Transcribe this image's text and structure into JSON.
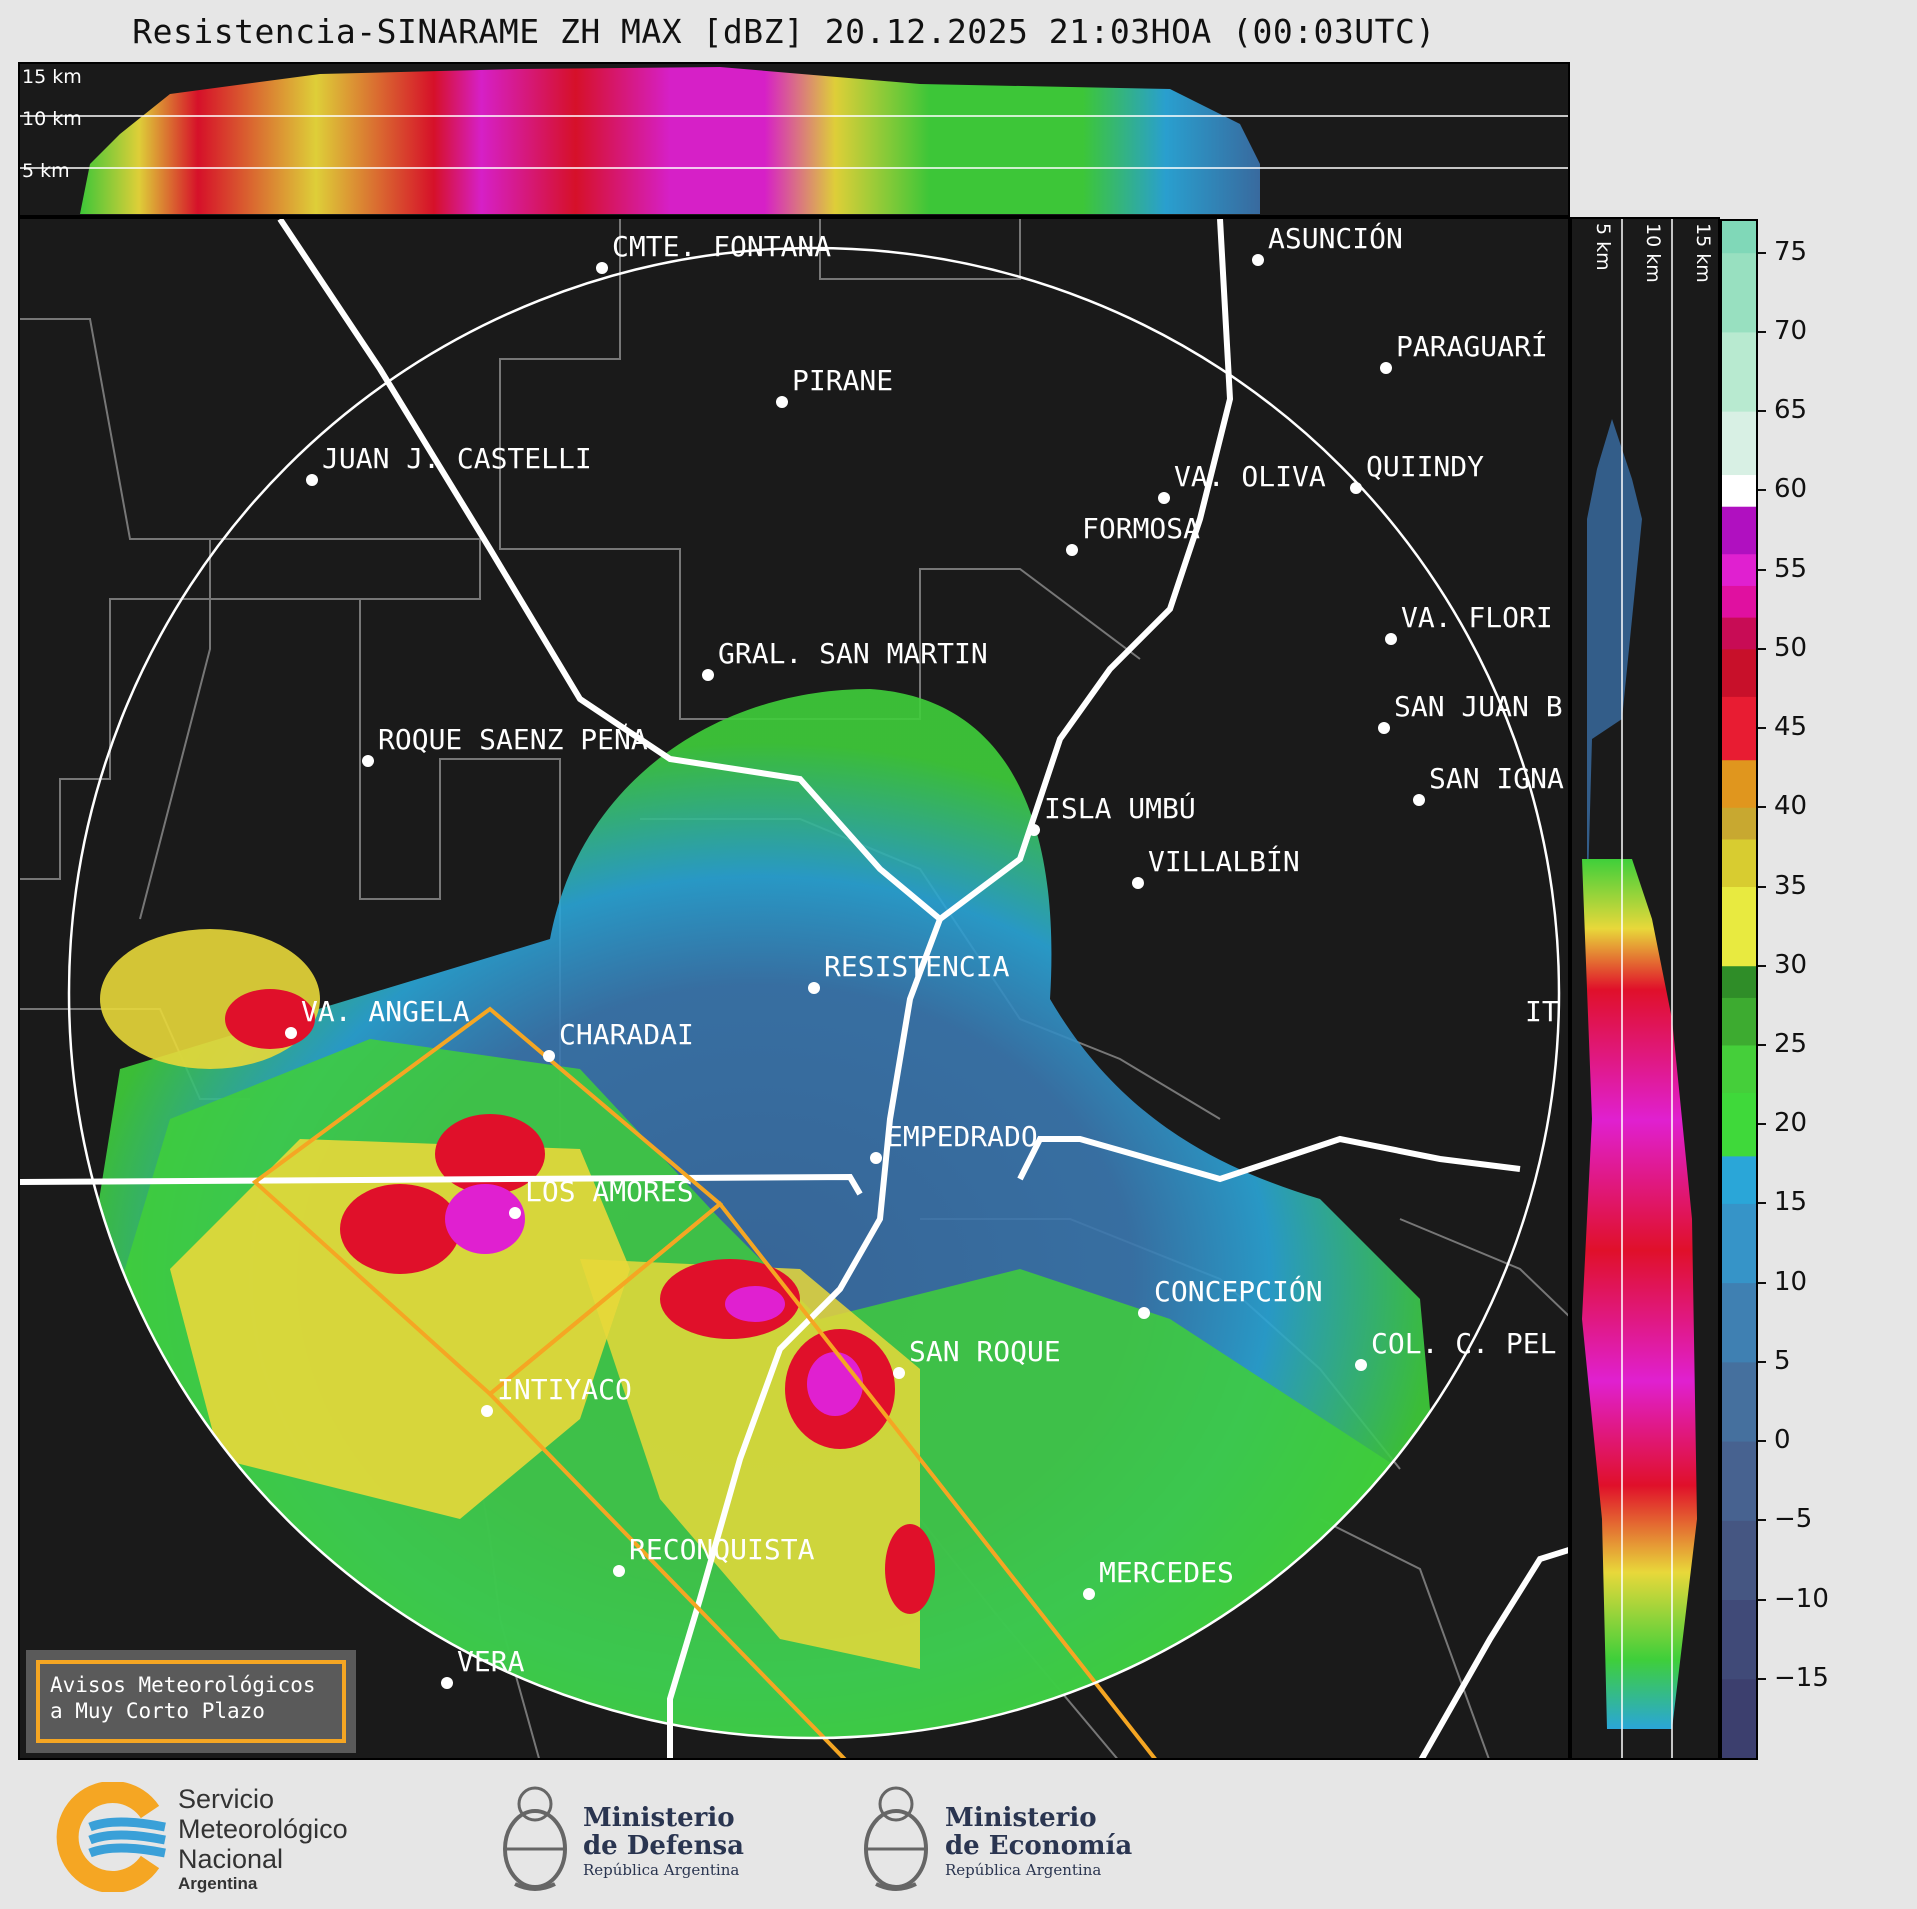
{
  "title": "Resistencia-SINARAME ZH MAX [dBZ] 20.12.2025 21:03HOA (00:03UTC)",
  "height_labels_top": [
    "15 km",
    "10 km",
    "5 km"
  ],
  "height_labels_side": [
    "5 km",
    "10 km",
    "15 km"
  ],
  "colorbar": {
    "ticks": [
      "75",
      "70",
      "65",
      "60",
      "55",
      "50",
      "45",
      "40",
      "35",
      "30",
      "25",
      "20",
      "15",
      "10",
      "5",
      "0",
      "−5",
      "−10",
      "−15"
    ],
    "range": [
      -20,
      77
    ]
  },
  "cities": [
    {
      "name": "CMTE. FONTANA"
    },
    {
      "name": "ASUNCIÓN"
    },
    {
      "name": "PARAGUARÍ"
    },
    {
      "name": "PIRANE"
    },
    {
      "name": "JUAN J. CASTELLI"
    },
    {
      "name": "VA. OLIVA"
    },
    {
      "name": "QUIINDY"
    },
    {
      "name": "FORMOSA"
    },
    {
      "name": "VA. FLORI"
    },
    {
      "name": "GRAL. SAN MARTIN"
    },
    {
      "name": "SAN JUAN B"
    },
    {
      "name": "ROQUE SAENZ PEÑA"
    },
    {
      "name": "SAN IGNA"
    },
    {
      "name": "ISLA UMBÚ"
    },
    {
      "name": "VILLALBÍN"
    },
    {
      "name": "RESISTENCIA"
    },
    {
      "name": "VA. ANGELA"
    },
    {
      "name": "CHARADAI"
    },
    {
      "name": "IT"
    },
    {
      "name": "EMPEDRADO"
    },
    {
      "name": "LOS AMORES"
    },
    {
      "name": "CONCEPCIÓN"
    },
    {
      "name": "SAN ROQUE"
    },
    {
      "name": "COL. C. PEL"
    },
    {
      "name": "INTIYACO"
    },
    {
      "name": "RECONQUISTA"
    },
    {
      "name": "MERCEDES"
    },
    {
      "name": "VERA"
    }
  ],
  "warning_box": {
    "line1": "Avisos Meteorológicos",
    "line2": "a Muy Corto Plazo"
  },
  "logos": {
    "smn": {
      "line1": "Servicio",
      "line2": "Meteorológico",
      "line3": "Nacional",
      "line4": "Argentina"
    },
    "defensa": {
      "line1": "Ministerio",
      "line2": "de Defensa",
      "line3": "República Argentina"
    },
    "economia": {
      "line1": "Ministerio",
      "line2": "de Economía",
      "line3": "República Argentina"
    }
  },
  "colors": {
    "weak": "#3a6ea5",
    "light": "#2aa6d8",
    "moderate": "#3fcf3a",
    "strong": "#e8d83a",
    "heavy": "#e0102a",
    "extreme": "#e020d0",
    "warning_outline": "#f5a623"
  }
}
